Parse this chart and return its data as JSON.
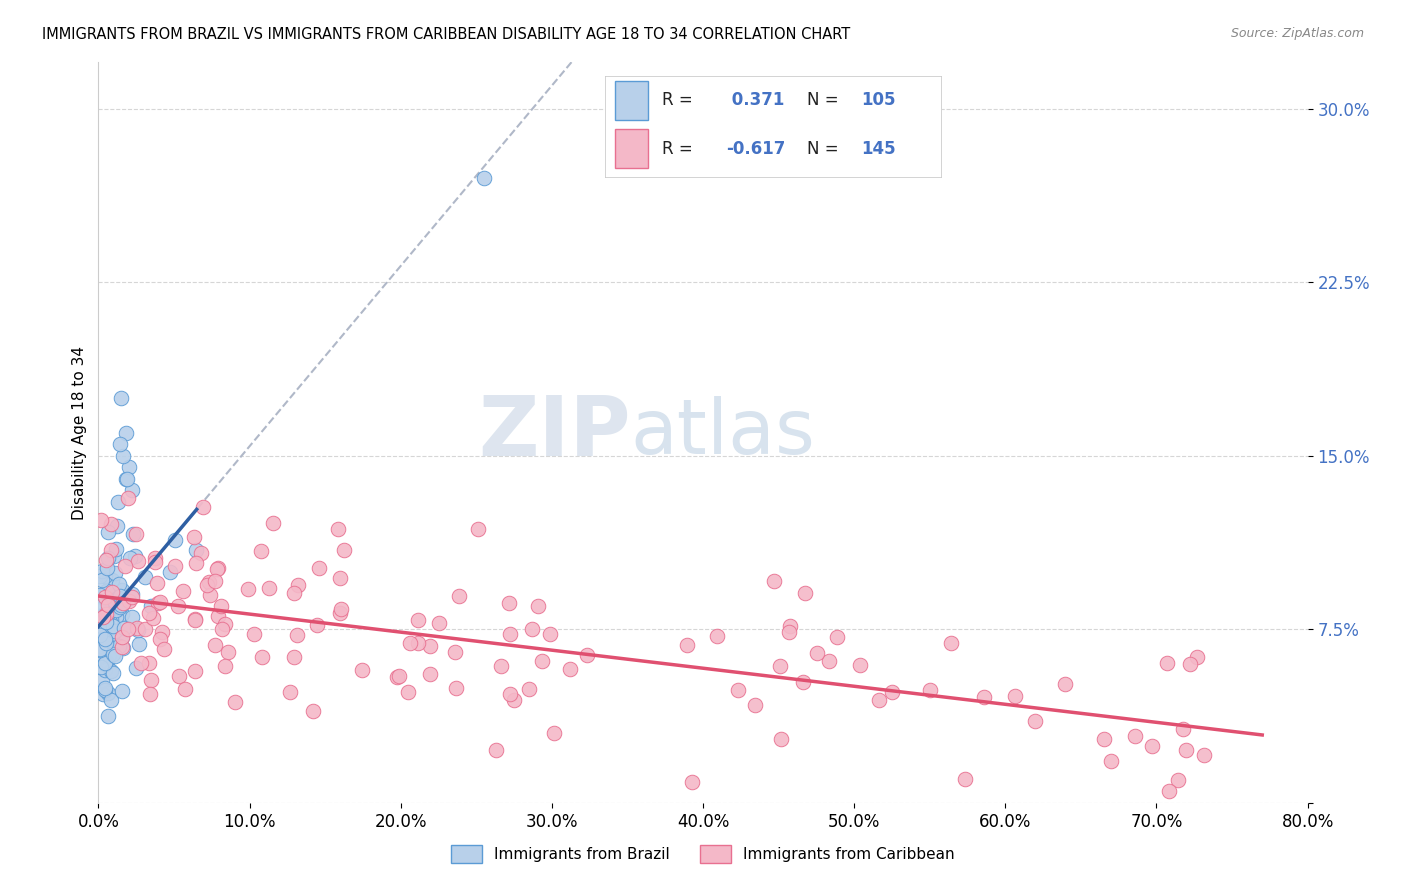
{
  "title": "IMMIGRANTS FROM BRAZIL VS IMMIGRANTS FROM CARIBBEAN DISABILITY AGE 18 TO 34 CORRELATION CHART",
  "source": "Source: ZipAtlas.com",
  "ylabel": "Disability Age 18 to 34",
  "xlim": [
    0.0,
    0.8
  ],
  "ylim": [
    0.0,
    0.32
  ],
  "brazil_R": 0.371,
  "brazil_N": 105,
  "caribbean_R": -0.617,
  "caribbean_N": 145,
  "brazil_color": "#b8d0ea",
  "brazil_edge_color": "#5b9bd5",
  "brazil_line_color": "#2e5fa3",
  "caribbean_color": "#f4b8c8",
  "caribbean_edge_color": "#e87090",
  "caribbean_line_color": "#e05070",
  "dashed_line_color": "#b0b8c8",
  "title_fontsize": 10.5,
  "source_fontsize": 9,
  "legend_R_color": "#333333",
  "legend_val_color": "#4472c4",
  "watermark_zip_color": "#c5d5e8",
  "watermark_atlas_color": "#b8cce0"
}
